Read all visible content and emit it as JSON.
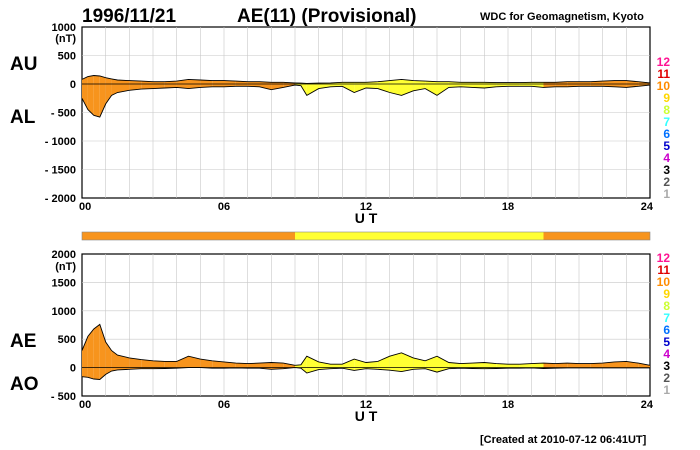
{
  "header": {
    "date": "1996/11/21",
    "title": "AE(11) (Provisional)",
    "source": "WDC for Geomagnetism, Kyoto",
    "created": "[Created at 2010-07-12 06:41UT]"
  },
  "colors": {
    "orange": "#f7941d",
    "yellow": "#ffff33"
  },
  "activity_bar": {
    "segments": [
      {
        "from": 0,
        "to": 9,
        "color": "orange"
      },
      {
        "from": 9,
        "to": 19.5,
        "color": "yellow"
      },
      {
        "from": 19.5,
        "to": 24,
        "color": "orange"
      }
    ]
  },
  "level_legend": [
    {
      "label": "12",
      "color": "#ff1493"
    },
    {
      "label": "11",
      "color": "#e00000"
    },
    {
      "label": "10",
      "color": "#ff8c00"
    },
    {
      "label": "9",
      "color": "#ffd700"
    },
    {
      "label": "8",
      "color": "#ccff33"
    },
    {
      "label": "7",
      "color": "#33ffff"
    },
    {
      "label": "6",
      "color": "#0070ff"
    },
    {
      "label": "5",
      "color": "#0000cc"
    },
    {
      "label": "4",
      "color": "#cc00cc"
    },
    {
      "label": "3",
      "color": "#000000"
    },
    {
      "label": "2",
      "color": "#555555"
    },
    {
      "label": "1",
      "color": "#aaaaaa"
    }
  ],
  "chart_data": [
    {
      "type": "area",
      "xlabel": "U T",
      "xlim": [
        0,
        24
      ],
      "xticks": [
        "00",
        "06",
        "12",
        "18",
        "24"
      ],
      "ylim": [
        -2000,
        1000
      ],
      "yticks": [
        "1000",
        "500",
        "0",
        "- 500",
        "- 1000",
        "- 1500",
        "- 2000"
      ],
      "yunit": "(nT)",
      "labels": [
        "AU",
        "AL"
      ],
      "x": [
        0,
        0.25,
        0.5,
        0.75,
        1,
        1.25,
        1.5,
        2,
        2.5,
        3,
        3.5,
        4,
        4.5,
        5,
        5.5,
        6,
        6.5,
        7,
        7.5,
        8,
        8.5,
        9,
        9.25,
        9.5,
        10,
        10.5,
        11,
        11.5,
        12,
        12.5,
        13,
        13.5,
        14,
        14.5,
        15,
        15.5,
        16,
        16.5,
        17,
        17.5,
        18,
        18.5,
        19,
        19.5,
        20,
        20.5,
        21,
        21.5,
        22,
        22.5,
        23,
        23.5,
        24
      ],
      "series": [
        {
          "name": "AU",
          "values": [
            80,
            130,
            150,
            140,
            110,
            90,
            70,
            60,
            50,
            40,
            40,
            50,
            80,
            70,
            60,
            60,
            50,
            40,
            40,
            30,
            30,
            20,
            15,
            10,
            15,
            20,
            30,
            30,
            30,
            40,
            60,
            80,
            60,
            50,
            40,
            40,
            30,
            30,
            30,
            25,
            25,
            25,
            30,
            30,
            30,
            40,
            40,
            40,
            50,
            60,
            60,
            40,
            20
          ]
        },
        {
          "name": "AL",
          "values": [
            -250,
            -450,
            -550,
            -580,
            -350,
            -200,
            -150,
            -110,
            -90,
            -80,
            -70,
            -60,
            -80,
            -60,
            -50,
            -50,
            -40,
            -40,
            -50,
            -100,
            -60,
            -20,
            -30,
            -200,
            -80,
            -50,
            -40,
            -150,
            -70,
            -80,
            -150,
            -200,
            -120,
            -80,
            -200,
            -60,
            -50,
            -60,
            -70,
            -50,
            -40,
            -40,
            -40,
            -60,
            -50,
            -50,
            -40,
            -40,
            -40,
            -50,
            -60,
            -40,
            -20
          ]
        }
      ]
    },
    {
      "type": "area",
      "xlabel": "U T",
      "xlim": [
        0,
        24
      ],
      "xticks": [
        "00",
        "06",
        "12",
        "18",
        "24"
      ],
      "ylim": [
        -500,
        2000
      ],
      "yticks": [
        "2000",
        "1500",
        "1000",
        "500",
        "0",
        "- 500"
      ],
      "yunit": "(nT)",
      "labels": [
        "AE",
        "AO"
      ],
      "x": [
        0,
        0.25,
        0.5,
        0.75,
        1,
        1.25,
        1.5,
        2,
        2.5,
        3,
        3.5,
        4,
        4.5,
        5,
        5.5,
        6,
        6.5,
        7,
        7.5,
        8,
        8.5,
        9,
        9.25,
        9.5,
        10,
        10.5,
        11,
        11.5,
        12,
        12.5,
        13,
        13.5,
        14,
        14.5,
        15,
        15.5,
        16,
        16.5,
        17,
        17.5,
        18,
        18.5,
        19,
        19.5,
        20,
        20.5,
        21,
        21.5,
        22,
        22.5,
        23,
        23.5,
        24
      ],
      "series": [
        {
          "name": "AE",
          "values": [
            300,
            550,
            680,
            760,
            450,
            300,
            220,
            170,
            140,
            120,
            110,
            110,
            200,
            150,
            120,
            100,
            80,
            70,
            80,
            90,
            80,
            40,
            50,
            200,
            100,
            60,
            60,
            150,
            90,
            110,
            200,
            260,
            170,
            120,
            200,
            90,
            70,
            80,
            90,
            70,
            60,
            60,
            70,
            80,
            70,
            80,
            70,
            70,
            80,
            100,
            110,
            80,
            40
          ]
        },
        {
          "name": "AO",
          "values": [
            -160,
            -170,
            -200,
            -210,
            -120,
            -60,
            -40,
            -30,
            -20,
            -20,
            -15,
            -10,
            0,
            0,
            -10,
            -10,
            -5,
            -10,
            -10,
            -30,
            -20,
            0,
            -10,
            -95,
            -35,
            -20,
            -10,
            -50,
            -20,
            -30,
            -45,
            -70,
            -30,
            -20,
            -80,
            -20,
            -10,
            -15,
            -20,
            -15,
            -10,
            -10,
            -5,
            -15,
            -10,
            -5,
            -5,
            -5,
            -5,
            -5,
            -5,
            -5,
            -5
          ]
        }
      ]
    }
  ]
}
